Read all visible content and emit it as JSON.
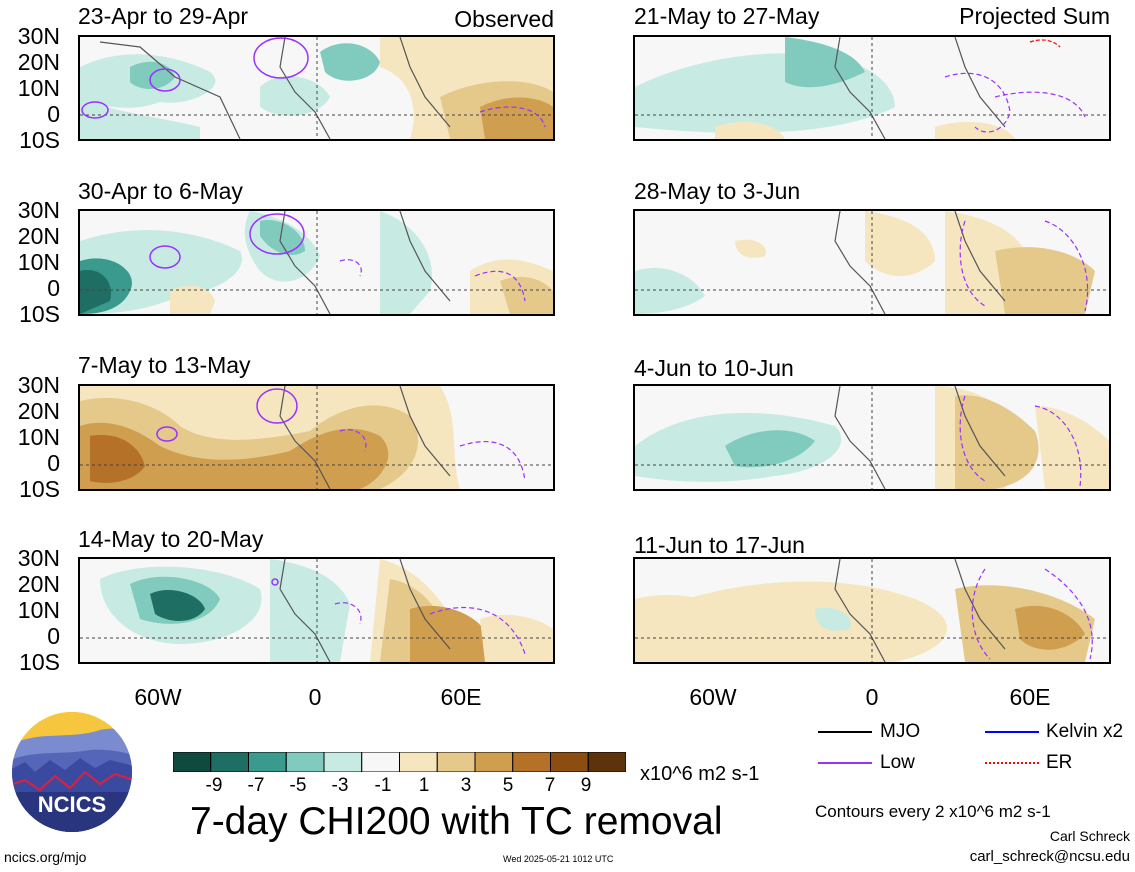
{
  "header": {
    "observed_label": "Observed",
    "projected_label": "Projected Sum"
  },
  "panels": [
    {
      "title": "23-Apr to 29-Apr",
      "column": "observed"
    },
    {
      "title": "30-Apr to 6-May",
      "column": "observed"
    },
    {
      "title": "7-May to 13-May",
      "column": "observed"
    },
    {
      "title": "14-May to 20-May",
      "column": "observed"
    },
    {
      "title": "21-May to 27-May",
      "column": "projected"
    },
    {
      "title": "28-May to 3-Jun",
      "column": "projected"
    },
    {
      "title": "4-Jun to 10-Jun",
      "column": "projected"
    },
    {
      "title": "11-Jun to 17-Jun",
      "column": "projected"
    }
  ],
  "axes": {
    "lat_labels": [
      "30N",
      "20N",
      "10N",
      "0",
      "10S"
    ],
    "lon_labels": [
      "60W",
      "0",
      "60E"
    ]
  },
  "colorbar": {
    "ticks": [
      "-9",
      "-7",
      "-5",
      "-3",
      "-1",
      "1",
      "3",
      "5",
      "7",
      "9"
    ],
    "units": "x10^6 m2 s-1",
    "colors": [
      "#0f4a3f",
      "#1f6e63",
      "#3b9a8e",
      "#80cbbe",
      "#c7ebe3",
      "#f7f7f7",
      "#f6e6c0",
      "#e4c98a",
      "#cf9e4e",
      "#b47127",
      "#8b4d10",
      "#5c330a"
    ]
  },
  "legend": {
    "mjo": "MJO",
    "kelvin": "Kelvin x2",
    "low": "Low",
    "er": "ER",
    "colors": {
      "mjo": "#000000",
      "kelvin": "#0000ff",
      "low": "#9b30ff",
      "er": "#ff0000"
    }
  },
  "footer": {
    "main_title": "7-day CHI200 with TC removal",
    "contour_note": "Contours every 2 x10^6 m2 s-1",
    "author": "Carl Schreck",
    "email": "carl_schreck@ncsu.edu",
    "url": "ncics.org/mjo",
    "timestamp": "Wed 2025-05-21 1012 UTC",
    "logo_text": "NCICS"
  }
}
